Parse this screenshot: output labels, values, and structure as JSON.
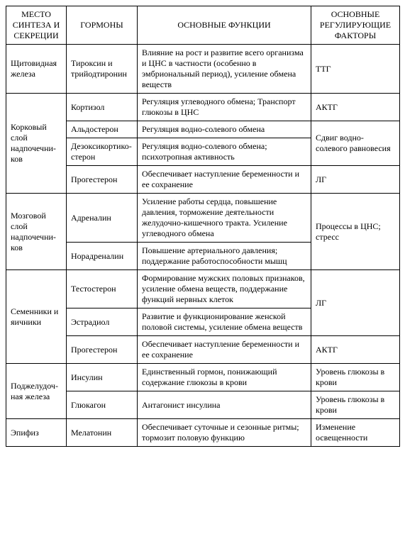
{
  "headers": {
    "site": "МЕСТО СИНТЕЗА И СЕКРЕЦИИ",
    "hormones": "ГОРМОНЫ",
    "functions": "ОСНОВНЫЕ ФУНКЦИИ",
    "factors": "ОСНОВНЫЕ РЕГУЛИРУЮЩИЕ ФАКТОРЫ"
  },
  "thyroid": {
    "site": "Щитовидная железа",
    "hormone": "Тироксин и трийодтиронин",
    "function": "Влияние на рост и развитие всего организма и ЦНС в частности (особенно в эмбриональный период), усиление обмена веществ",
    "factor": "ТТГ"
  },
  "adrenal_cortex": {
    "site": "Корковый слой надпочечни­ков",
    "r1": {
      "hormone": "Кортизол",
      "function": "Регуляция углеводного обмена; Транспорт глюкозы в ЦНС",
      "factor": "АКТГ"
    },
    "r2": {
      "hormone": "Альдостерон",
      "function": "Регуляция водно-солевого обмена"
    },
    "r23_factor": "Сдвиг водно-солевого равновесия",
    "r3": {
      "hormone": "Дезоксикортико­стерон",
      "function": "Регуляция водно-солевого обмена; психотропная активность"
    },
    "r4": {
      "hormone": "Прогестерон",
      "function": "Обеспечивает наступление беременности и ее сохранение",
      "factor": "ЛГ"
    }
  },
  "adrenal_medulla": {
    "site": "Мозговой слой надпочечни­ков",
    "factor": "Процессы в ЦНС; стресс",
    "r1": {
      "hormone": "Адреналин",
      "function": "Усиление работы сердца, повышение давления, торможение деятельности желудочно-кишечного тракта. Усиление углеводного обмена"
    },
    "r2": {
      "hormone": "Норадреналин",
      "function": "Повышение артериального давления; поддержание работоспособности мышц"
    }
  },
  "gonads": {
    "site": "Семенники и яичники",
    "r12_factor": "ЛГ",
    "r1": {
      "hormone": "Тестостерон",
      "function": "Формирование мужских половых признаков, усиление обмена веществ, поддержание функций нервных клеток"
    },
    "r2": {
      "hormone": "Эстрадиол",
      "function": "Развитие и функционирование женской половой системы, усиление обмена веществ"
    },
    "r3": {
      "hormone": "Прогестерон",
      "function": "Обеспечивает наступление беременности и ее сохранение",
      "factor": "АКТГ"
    }
  },
  "pancreas": {
    "site": "Поджелудоч­ная железа",
    "r1": {
      "hormone": "Инсулин",
      "function": "Единственный гормон, понижающий содержание глюкозы в крови",
      "factor": "Уровень глюкозы в крови"
    },
    "r2": {
      "hormone": "Глюкагон",
      "function": "Антагонист инсулина",
      "factor": "Уровень глюкозы в крови"
    }
  },
  "pineal": {
    "site": "Эпифиз",
    "hormone": "Мелатонин",
    "function": "Обеспечивает суточные и сезонные ритмы; тормозит половую функцию",
    "factor": "Изменение освещенности"
  }
}
